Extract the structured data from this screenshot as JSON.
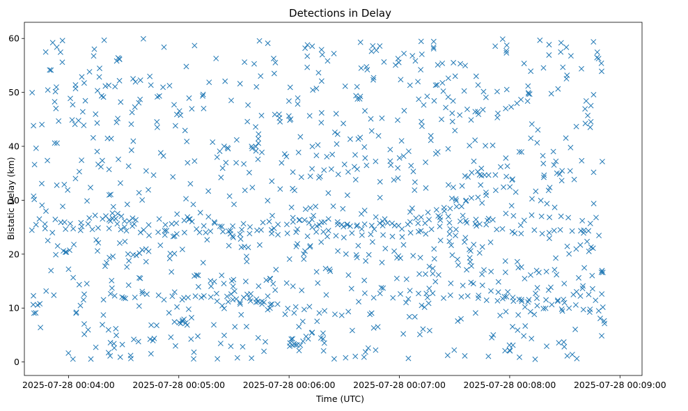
{
  "chart_data": {
    "type": "scatter",
    "title": "Detections in Delay",
    "xlabel": "Time (UTC)",
    "ylabel": "Bistatic Delay (km)",
    "x_ticks": [
      "2025-07-28 00:04:00",
      "2025-07-28 00:05:00",
      "2025-07-28 00:06:00",
      "2025-07-28 00:07:00",
      "2025-07-28 00:08:00",
      "2025-07-28 00:09:00"
    ],
    "y_ticks": [
      "0",
      "10",
      "20",
      "30",
      "40",
      "50",
      "60"
    ],
    "xlim": [
      "2025-07-28 00:03:36",
      "2025-07-28 00:09:12"
    ],
    "ylim": [
      -2.5,
      63
    ],
    "x_range_data": [
      "2025-07-28 00:03:40",
      "2025-07-28 00:08:52"
    ],
    "marker": "x",
    "color": "#1f77b4",
    "grid": false,
    "legend": "none",
    "tracks": [
      {
        "points": [
          [
            "00:03:40",
            26.0
          ],
          [
            "00:04:10",
            26.2
          ],
          [
            "00:04:30",
            25.8
          ],
          [
            "00:05:00",
            26.0
          ],
          [
            "00:05:20",
            25.5
          ],
          [
            "00:05:40",
            25.6
          ],
          [
            "00:06:00",
            26.0
          ],
          [
            "00:06:20",
            25.5
          ],
          [
            "00:06:40",
            25.0
          ],
          [
            "00:07:00",
            25.5
          ],
          [
            "00:07:20",
            26.0
          ],
          [
            "00:07:40",
            26.5
          ],
          [
            "00:08:00",
            27.0
          ],
          [
            "00:08:20",
            26.5
          ],
          [
            "00:08:52",
            26.2
          ]
        ]
      },
      {
        "points": [
          [
            "00:03:40",
            24.5
          ],
          [
            "00:04:10",
            24.5
          ],
          [
            "00:04:30",
            24.0
          ],
          [
            "00:04:50",
            23.8
          ],
          [
            "00:05:10",
            24.2
          ],
          [
            "00:05:30",
            24.3
          ],
          [
            "00:06:00",
            24.0
          ],
          [
            "00:06:20",
            23.7
          ],
          [
            "00:06:40",
            23.2
          ],
          [
            "00:07:00",
            23.5
          ],
          [
            "00:07:20",
            24.5
          ],
          [
            "00:07:40",
            25.5
          ],
          [
            "00:08:00",
            24.5
          ],
          [
            "00:08:20",
            24.0
          ],
          [
            "00:08:52",
            24.0
          ]
        ]
      },
      {
        "points": [
          [
            "00:04:20",
            26.8
          ],
          [
            "00:04:30",
            27.4
          ]
        ]
      },
      {
        "points": [
          [
            "00:04:35",
            20.2
          ],
          [
            "00:04:45",
            20.8
          ]
        ]
      },
      {
        "points": [
          [
            "00:06:00",
            27.0
          ],
          [
            "00:06:20",
            26.2
          ],
          [
            "00:06:40",
            25.5
          ],
          [
            "00:07:00",
            25.2
          ]
        ]
      },
      {
        "points": [
          [
            "00:07:00",
            25.0
          ],
          [
            "00:07:20",
            28.0
          ],
          [
            "00:07:40",
            30.5
          ],
          [
            "00:07:50",
            32.0
          ]
        ]
      },
      {
        "points": [
          [
            "00:07:35",
            34.9
          ],
          [
            "00:07:50",
            34.7
          ]
        ]
      },
      {
        "points": [
          [
            "00:04:30",
            12.3
          ],
          [
            "00:05:00",
            12.0
          ],
          [
            "00:05:20",
            11.8
          ],
          [
            "00:05:40",
            11.3
          ],
          [
            "00:05:50",
            11.0
          ]
        ]
      },
      {
        "points": [
          [
            "00:05:20",
            12.5
          ],
          [
            "00:05:40",
            11.0
          ],
          [
            "00:06:00",
            10.0
          ],
          [
            "00:06:20",
            9.5
          ],
          [
            "00:06:35",
            9.0
          ]
        ]
      },
      {
        "points": [
          [
            "00:06:40",
            12.2
          ],
          [
            "00:07:00",
            12.2
          ],
          [
            "00:07:20",
            12.2
          ],
          [
            "00:07:40",
            12.0
          ],
          [
            "00:07:55",
            11.8
          ],
          [
            "00:08:05",
            11.5
          ],
          [
            "00:08:20",
            11.8
          ],
          [
            "00:08:52",
            12.4
          ]
        ]
      },
      {
        "points": [
          [
            "00:07:40",
            14.5
          ],
          [
            "00:08:00",
            12.5
          ],
          [
            "00:08:10",
            11.0
          ],
          [
            "00:08:20",
            10.5
          ],
          [
            "00:08:52",
            9.5
          ]
        ]
      },
      {
        "points": [
          [
            "00:05:00",
            7.8
          ],
          [
            "00:05:05",
            7.4
          ]
        ]
      },
      {
        "points": [
          [
            "00:06:00",
            3.8
          ],
          [
            "00:06:05",
            3.6
          ]
        ]
      }
    ],
    "track_samples": 55,
    "track_jitter_y": 0.6,
    "noise_count": 900,
    "noise_y_range": [
      0.5,
      60
    ]
  }
}
